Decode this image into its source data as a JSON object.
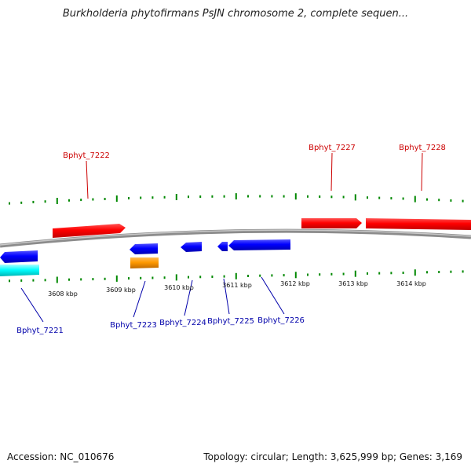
{
  "title": "Burkholderia phytofirmans PsJN chromosome 2, complete sequen...",
  "footer": {
    "accession": "Accession: NC_010676",
    "topology": "Topology: circular; Length: 3,625,999 bp; Genes: 3,169"
  },
  "colors": {
    "forward_gene": "#ff0000",
    "reverse_gene": "#0000ff",
    "forward_label": "#cc0000",
    "reverse_label": "#0000aa",
    "cyan_gene": "#00ffff",
    "orange_gene": "#ff9900",
    "tick": "#008800",
    "backbone": "#8c8c8c"
  },
  "scale_labels": [
    "3608 kbp",
    "3609 kbp",
    "3610 kbp",
    "3611 kbp",
    "3612 kbp",
    "3613 kbp",
    "3614 kbp"
  ],
  "gene_labels": {
    "forward": [
      "Bphyt_7222",
      "Bphyt_7227",
      "Bphyt_7228"
    ],
    "reverse": [
      "Bphyt_7221",
      "Bphyt_7223",
      "Bphyt_7224",
      "Bphyt_7225",
      "Bphyt_7226"
    ]
  }
}
